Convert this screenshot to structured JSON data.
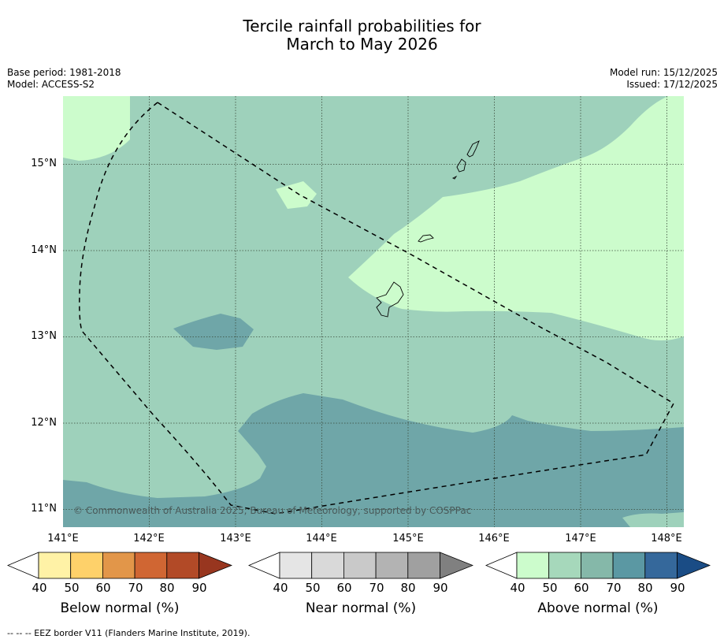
{
  "title_line1": "Tercile rainfall probabilities for",
  "title_line2": "March to May 2026",
  "meta": {
    "base_period": "Base period: 1981-2018",
    "model": "Model: ACCESS-S2",
    "model_run": "Model run: 15/12/2025",
    "issued": "Issued: 17/12/2025"
  },
  "map": {
    "lat_labels": [
      "15°N",
      "14°N",
      "13°N",
      "12°N",
      "11°N"
    ],
    "lon_labels": [
      "141°E",
      "142°E",
      "143°E",
      "144°E",
      "145°E",
      "146°E",
      "147°E",
      "148°E"
    ],
    "copyright": "© Commonwealth of Australia 2025, Bureau of Meteorology, supported by COSPPac",
    "colors": {
      "above_50": "#ccfccc",
      "above_60": "#9ed1bb",
      "above_70": "#6fa6a8",
      "land_outline": "#000000",
      "eez_line": "#000000"
    }
  },
  "colorbars": [
    {
      "title": "Below normal (%)",
      "ticks": [
        "40",
        "50",
        "60",
        "70",
        "80",
        "90"
      ],
      "colors": [
        "#ffffff",
        "#fff2a6",
        "#fed16a",
        "#e29649",
        "#d06633",
        "#b24a27",
        "#98361f"
      ]
    },
    {
      "title": "Near normal (%)",
      "ticks": [
        "40",
        "50",
        "60",
        "70",
        "80",
        "90"
      ],
      "colors": [
        "#ffffff",
        "#e5e5e5",
        "#d9d9d9",
        "#c9c9c9",
        "#b3b3b3",
        "#a0a0a0",
        "#808080"
      ]
    },
    {
      "title": "Above normal (%)",
      "ticks": [
        "40",
        "50",
        "60",
        "70",
        "80",
        "90"
      ],
      "colors": [
        "#ffffff",
        "#ccfccc",
        "#a6d8bb",
        "#85b8a9",
        "#5b98a3",
        "#35689b",
        "#1a4c85"
      ]
    }
  ],
  "footnote": "--  --  -- EEZ border V11 (Flanders Marine Institute, 2019)."
}
